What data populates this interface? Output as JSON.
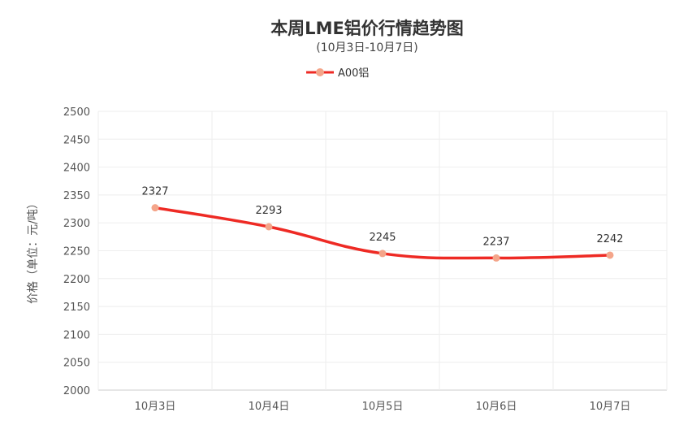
{
  "chart_data": {
    "type": "line",
    "title": "本周LME铝价行情趋势图",
    "subtitle": "(10月3日-10月7日)",
    "ylabel": "价格（单位：元/吨）",
    "xlabel": "",
    "categories": [
      "10月3日",
      "10月4日",
      "10月5日",
      "10月6日",
      "10月7日"
    ],
    "series": [
      {
        "name": "A00铝",
        "values": [
          2327,
          2293,
          2245,
          2237,
          2242
        ],
        "color": "#ee2a24",
        "marker_color": "#f4a58a"
      }
    ],
    "ylim": [
      2000,
      2500
    ],
    "yticks": [
      2000,
      2050,
      2100,
      2150,
      2200,
      2250,
      2300,
      2350,
      2400,
      2450,
      2500
    ],
    "grid": true,
    "legend": "top-center",
    "smooth": true
  }
}
